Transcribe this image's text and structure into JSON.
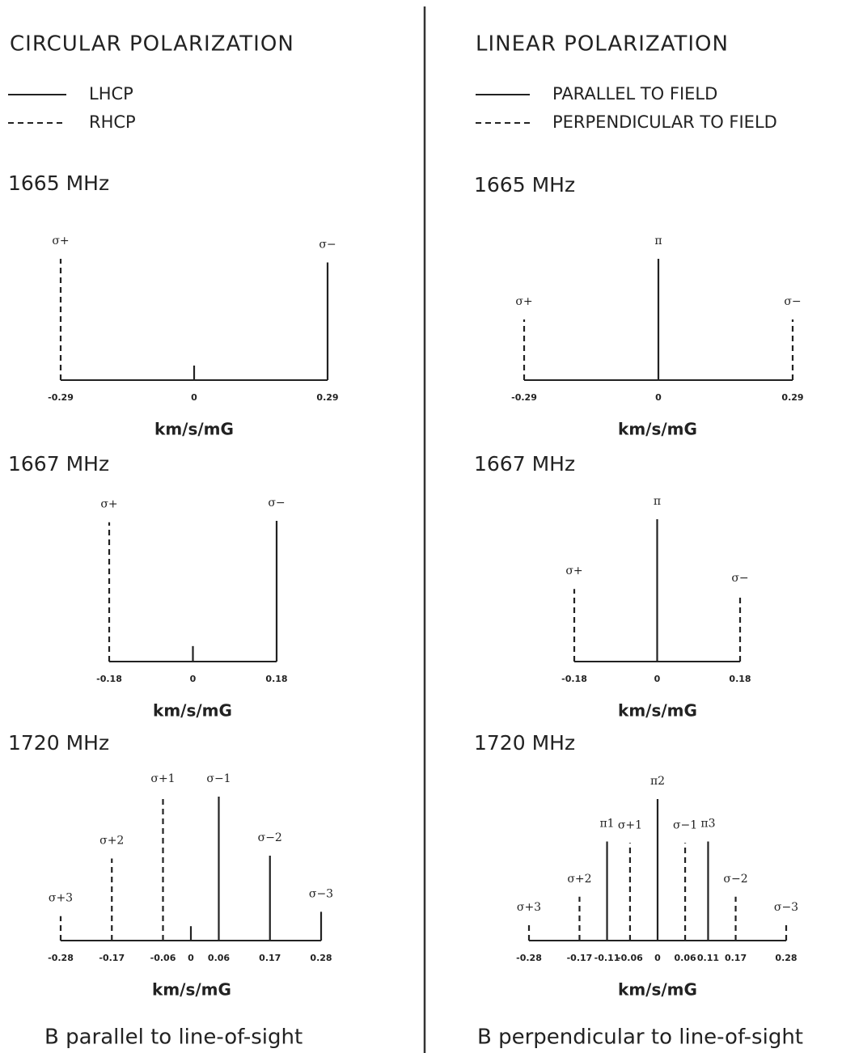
{
  "columns": [
    {
      "title": "CIRCULAR POLARIZATION",
      "legend": [
        {
          "name": "LHCP",
          "style": "solid"
        },
        {
          "name": "RHCP",
          "style": "dashed"
        }
      ],
      "caption": "B parallel to line-of-sight",
      "panels": [
        {
          "frequency": "1665 MHz",
          "xlabel": "km/s/mG",
          "xlim": [
            -0.29,
            0.29
          ],
          "xticks": [
            -0.29,
            0,
            0.29
          ],
          "lines": [
            {
              "label": "σ+",
              "x": -0.29,
              "height": 1.0,
              "style": "dashed"
            },
            {
              "label": null,
              "x": 0,
              "height": 0.12,
              "style": "solid"
            },
            {
              "label": "σ−",
              "x": 0.29,
              "height": 0.97,
              "style": "solid"
            }
          ]
        },
        {
          "frequency": "1667 MHz",
          "xlabel": "km/s/mG",
          "xlim": [
            -0.18,
            0.18
          ],
          "xticks": [
            -0.18,
            0,
            0.18
          ],
          "lines": [
            {
              "label": "σ+",
              "x": -0.18,
              "height": 0.99,
              "style": "dashed"
            },
            {
              "label": null,
              "x": 0,
              "height": 0.11,
              "style": "solid"
            },
            {
              "label": "σ−",
              "x": 0.18,
              "height": 1.0,
              "style": "solid"
            }
          ]
        },
        {
          "frequency": "1720 MHz",
          "xlabel": "km/s/mG",
          "xlim": [
            -0.28,
            0.28
          ],
          "xticks": [
            -0.28,
            -0.17,
            -0.06,
            0,
            0.06,
            0.17,
            0.28
          ],
          "lines": [
            {
              "label": "σ+3",
              "x": -0.28,
              "height": 0.17,
              "style": "dashed"
            },
            {
              "label": "σ+2",
              "x": -0.17,
              "height": 0.57,
              "style": "dashed"
            },
            {
              "label": "σ+1",
              "x": -0.06,
              "height": 1.0,
              "style": "dashed"
            },
            {
              "label": null,
              "x": 0,
              "height": 0.1,
              "style": "solid"
            },
            {
              "label": "σ−1",
              "x": 0.06,
              "height": 1.0,
              "style": "solid"
            },
            {
              "label": "σ−2",
              "x": 0.17,
              "height": 0.59,
              "style": "solid"
            },
            {
              "label": "σ−3",
              "x": 0.28,
              "height": 0.2,
              "style": "solid"
            }
          ]
        }
      ]
    },
    {
      "title": "LINEAR POLARIZATION",
      "legend": [
        {
          "name": "PARALLEL TO FIELD",
          "style": "solid"
        },
        {
          "name": "PERPENDICULAR TO FIELD",
          "style": "dashed"
        }
      ],
      "caption": "B perpendicular to line-of-sight",
      "panels": [
        {
          "frequency": "1665 MHz",
          "xlabel": "km/s/mG",
          "xlim": [
            -0.29,
            0.29
          ],
          "xticks": [
            -0.29,
            0,
            0.29
          ],
          "lines": [
            {
              "label": "σ+",
              "x": -0.29,
              "height": 0.5,
              "style": "dashed"
            },
            {
              "label": "π",
              "x": 0,
              "height": 1.0,
              "style": "solid"
            },
            {
              "label": "σ−",
              "x": 0.29,
              "height": 0.5,
              "style": "dashed"
            }
          ]
        },
        {
          "frequency": "1667 MHz",
          "xlabel": "km/s/mG",
          "xlim": [
            -0.18,
            0.18
          ],
          "xticks": [
            -0.18,
            0,
            0.18
          ],
          "lines": [
            {
              "label": "σ+",
              "x": -0.18,
              "height": 0.51,
              "style": "dashed"
            },
            {
              "label": "π",
              "x": 0,
              "height": 1.0,
              "style": "solid"
            },
            {
              "label": "σ−",
              "x": 0.18,
              "height": 0.46,
              "style": "dashed"
            }
          ]
        },
        {
          "frequency": "1720 MHz",
          "xlabel": "km/s/mG",
          "xlim": [
            -0.28,
            0.28
          ],
          "xticks": [
            -0.28,
            -0.17,
            -0.11,
            -0.06,
            0,
            0.06,
            0.11,
            0.17,
            0.28
          ],
          "lines": [
            {
              "label": "σ+3",
              "x": -0.28,
              "height": 0.11,
              "style": "dashed"
            },
            {
              "label": "σ+2",
              "x": -0.17,
              "height": 0.31,
              "style": "dashed"
            },
            {
              "label": "π1",
              "x": -0.11,
              "height": 0.7,
              "style": "solid"
            },
            {
              "label": "σ+1",
              "x": -0.06,
              "height": 0.69,
              "style": "dashed"
            },
            {
              "label": "π2",
              "x": 0,
              "height": 1.0,
              "style": "solid"
            },
            {
              "label": "σ−1",
              "x": 0.06,
              "height": 0.69,
              "style": "dashed"
            },
            {
              "label": "π3",
              "x": 0.11,
              "height": 0.7,
              "style": "solid"
            },
            {
              "label": "σ−2",
              "x": 0.17,
              "height": 0.31,
              "style": "dashed"
            },
            {
              "label": "σ−3",
              "x": 0.28,
              "height": 0.11,
              "style": "dashed"
            }
          ]
        }
      ]
    }
  ]
}
